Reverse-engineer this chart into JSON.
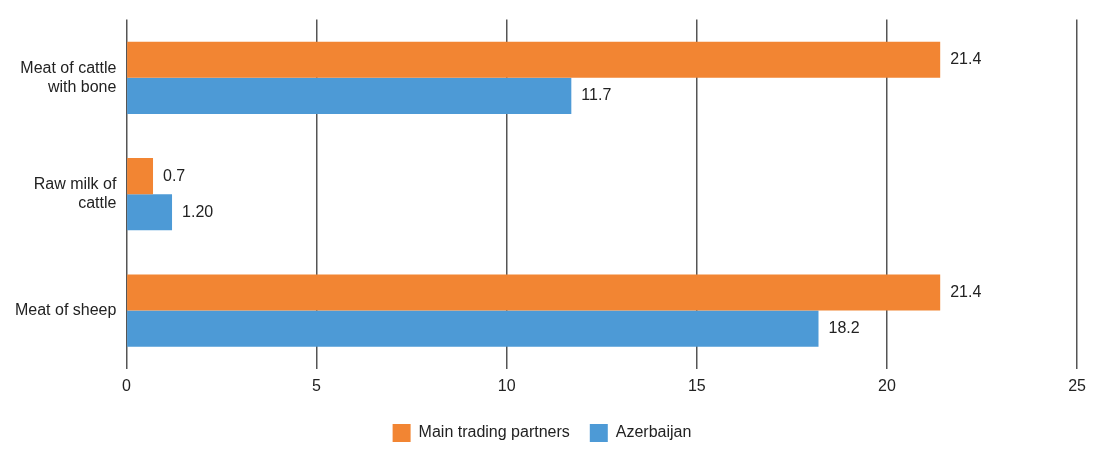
{
  "chart_data": {
    "type": "bar",
    "orientation": "horizontal",
    "categories": [
      "Meat of cattle with bone",
      "Raw milk of cattle",
      "Meat of sheep"
    ],
    "series": [
      {
        "name": "Main trading partners",
        "color": "#f28533",
        "values": [
          21.4,
          0.7,
          21.4
        ],
        "value_labels": [
          "21.4",
          "0.7",
          "21.4"
        ]
      },
      {
        "name": "Azerbaijan",
        "color": "#4d9ad6",
        "values": [
          11.7,
          1.2,
          18.2
        ],
        "value_labels": [
          "11.7",
          "1.20",
          "18.2"
        ]
      }
    ],
    "xlim": [
      0,
      25
    ],
    "xticks": [
      0,
      5,
      10,
      15,
      20,
      25
    ],
    "grid": "x",
    "legend": "bottom"
  }
}
